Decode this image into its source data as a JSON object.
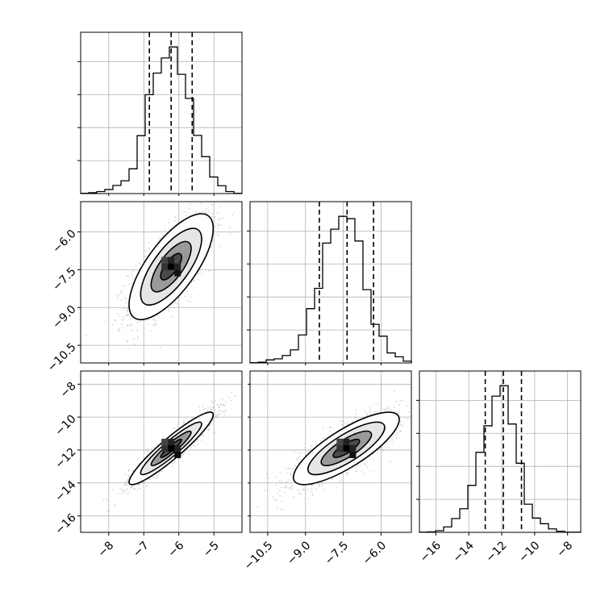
{
  "chart_data": {
    "type": "corner",
    "description_of_layout": "lower-triangle corner plot of three parameters",
    "grid": true,
    "parameters": [
      {
        "index": 0,
        "range": [
          -8.8,
          -4.2
        ],
        "ticks": [
          -8,
          -7,
          -6,
          -5
        ],
        "tick_labels": [
          "−8",
          "−7",
          "−6",
          "−5"
        ],
        "quantiles": [
          -6.84,
          -6.22,
          -5.62
        ],
        "histogram": {
          "bins": [
            -8.8,
            -8.57,
            -8.34,
            -8.11,
            -7.88,
            -7.65,
            -7.42,
            -7.19,
            -6.96,
            -6.73,
            -6.5,
            -6.27,
            -6.04,
            -5.81,
            -5.58,
            -5.35,
            -5.12,
            -4.89,
            -4.66,
            -4.43,
            -4.2
          ],
          "heights": [
            1,
            3,
            7,
            14,
            28,
            44,
            85,
            199,
            340,
            414,
            466,
            504,
            410,
            327,
            200,
            127,
            57,
            27,
            7,
            1
          ]
        }
      },
      {
        "index": 1,
        "range": [
          -11.2,
          -4.8
        ],
        "ticks": [
          -10.5,
          -9.0,
          -7.5,
          -6.0
        ],
        "tick_labels": [
          "−10.5",
          "−9.0",
          "−7.5",
          "−6.0"
        ],
        "quantiles": [
          -8.45,
          -7.35,
          -6.3
        ],
        "histogram": {
          "bins": [
            -11.2,
            -10.88,
            -10.56,
            -10.24,
            -9.92,
            -9.6,
            -9.28,
            -8.96,
            -8.64,
            -8.32,
            -8.0,
            -7.68,
            -7.36,
            -7.04,
            -6.72,
            -6.4,
            -6.08,
            -5.76,
            -5.44,
            -5.12,
            -4.8
          ],
          "heights": [
            1,
            3,
            12,
            16,
            29,
            51,
            109,
            211,
            290,
            466,
            520,
            570,
            561,
            474,
            285,
            150,
            104,
            39,
            24,
            7
          ]
        }
      },
      {
        "index": 2,
        "range": [
          -17.0,
          -7.2
        ],
        "ticks": [
          -16,
          -14,
          -12,
          -10,
          -8
        ],
        "tick_labels": [
          "−16",
          "−14",
          "−12",
          "−10",
          "−8"
        ],
        "quantiles": [
          -13.0,
          -11.9,
          -10.8
        ],
        "histogram": {
          "bins": [
            -17.0,
            -16.51,
            -16.02,
            -15.53,
            -15.04,
            -14.55,
            -14.06,
            -13.57,
            -13.08,
            -12.59,
            -12.1,
            -11.61,
            -11.12,
            -10.63,
            -10.14,
            -9.65,
            -9.16,
            -8.67,
            -8.18,
            -7.69,
            -7.2
          ],
          "heights": [
            1,
            2,
            7,
            24,
            61,
            104,
            207,
            353,
            470,
            601,
            647,
            478,
            305,
            124,
            63,
            38,
            15,
            5,
            1,
            1
          ]
        }
      }
    ],
    "pairs": [
      {
        "x": 0,
        "y": 1,
        "center": [
          -6.22,
          -7.38
        ],
        "sd": [
          0.6,
          1.05
        ],
        "rho": 0.72
      },
      {
        "x": 0,
        "y": 2,
        "center": [
          -6.22,
          -11.9
        ],
        "sd": [
          0.6,
          1.1
        ],
        "rho": 0.93
      },
      {
        "x": 1,
        "y": 2,
        "center": [
          -7.38,
          -11.9
        ],
        "sd": [
          1.05,
          1.1
        ],
        "rho": 0.8
      }
    ],
    "hist_ylim_fraction": [
      0,
      1.1
    ]
  }
}
